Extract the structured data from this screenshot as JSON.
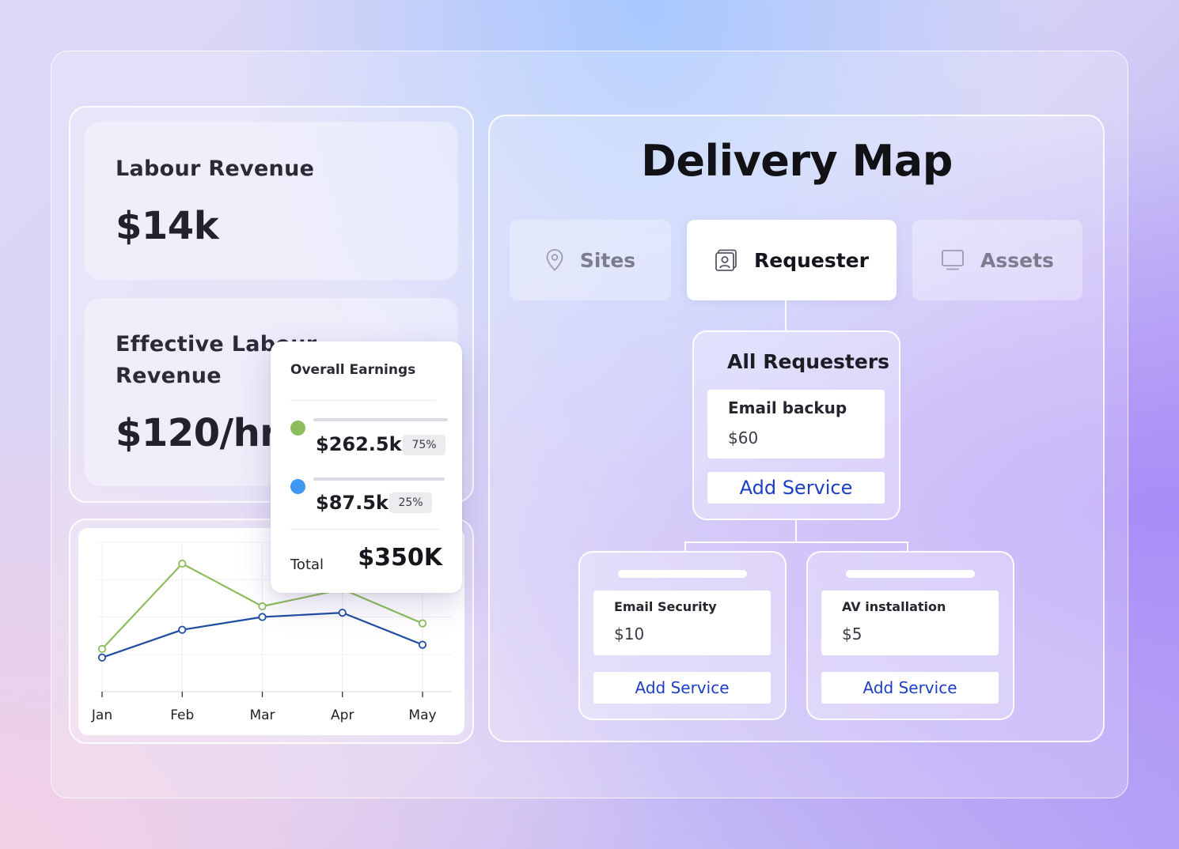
{
  "metrics": {
    "labour_revenue": {
      "label": "Labour Revenue",
      "value": "$14k"
    },
    "effective_labour_revenue": {
      "label_line1": "Effective Labour",
      "label_line2": "Revenue",
      "value": "$120/hr"
    }
  },
  "earnings_popup": {
    "title": "Overall Earnings",
    "items": [
      {
        "amount": "$262.5k",
        "percent": "75%",
        "color": "#8dbd5d"
      },
      {
        "amount": "$87.5k",
        "percent": "25%",
        "color": "#3f97f1"
      }
    ],
    "total_label": "Total",
    "total_value": "$350K"
  },
  "chart_data": {
    "type": "line",
    "categories": [
      "Jan",
      "Feb",
      "Mar",
      "Apr",
      "May"
    ],
    "series": [
      {
        "color": "#8dbd5d",
        "values": [
          1.0,
          3.0,
          2.0,
          2.4,
          1.6
        ]
      },
      {
        "color": "#1f4da0",
        "values": [
          0.8,
          1.45,
          1.75,
          1.85,
          1.1
        ]
      }
    ],
    "ylim": [
      0,
      3.5
    ],
    "grid": true,
    "xlabel": "",
    "ylabel": ""
  },
  "delivery_map": {
    "title": "Delivery Map",
    "tabs": [
      {
        "label": "Sites",
        "icon": "location-pin-icon",
        "active": false
      },
      {
        "label": "Requester",
        "icon": "contact-card-icon",
        "active": true
      },
      {
        "label": "Assets",
        "icon": "monitor-icon",
        "active": false
      }
    ],
    "root_node": {
      "title": "All Requesters",
      "service": {
        "name": "Email backup",
        "price": "$60"
      },
      "button": "Add Service"
    },
    "children": [
      {
        "service": {
          "name": "Email Security",
          "price": "$10"
        },
        "button": "Add Service"
      },
      {
        "service": {
          "name": "AV installation",
          "price": "$5"
        },
        "button": "Add Service"
      }
    ]
  }
}
